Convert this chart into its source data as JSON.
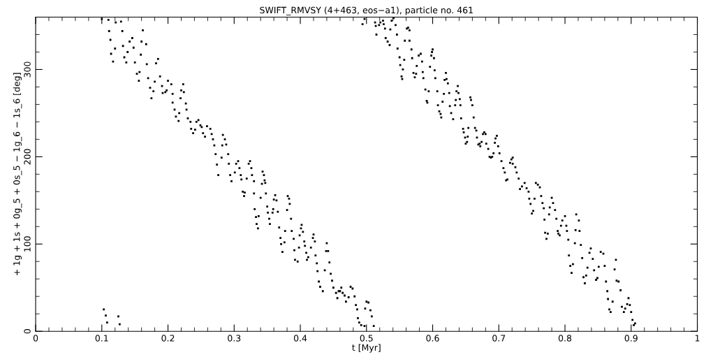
{
  "chart_data": {
    "type": "scatter",
    "title": "SWIFT_RMVSY (4+463, eos−a1), particle no. 461",
    "xlabel": "t [Myr]",
    "ylabel": "+ 1g + 1s + 0g_5 + 0s_5 − 1g_6 − 1s_6 [deg]",
    "xlim": [
      0,
      1
    ],
    "ylim": [
      0,
      360
    ],
    "xticks": [
      0,
      0.1,
      0.2,
      0.3,
      0.4,
      0.5,
      0.6,
      0.7,
      0.8,
      0.9,
      1
    ],
    "yticks": [
      0,
      100,
      200,
      300
    ],
    "grid": false,
    "legend": false,
    "marker": "square",
    "series": [
      {
        "color": "#000000",
        "x": [
          0.103,
          0.106,
          0.108,
          0.125,
          0.127
        ],
        "values": [
          25,
          18,
          10,
          17,
          8
        ]
      },
      {
        "color": "#000000",
        "x": [
          0.1,
          0.11,
          0.111,
          0.113,
          0.114,
          0.117,
          0.12,
          0.121,
          0.129,
          0.131,
          0.132,
          0.134,
          0.137,
          0.139,
          0.142,
          0.146,
          0.148,
          0.15,
          0.153,
          0.156,
          0.157,
          0.159,
          0.16,
          0.162,
          0.167,
          0.168,
          0.17,
          0.173,
          0.175,
          0.178,
          0.18,
          0.182,
          0.185,
          0.188,
          0.191,
          0.192,
          0.196,
          0.198,
          0.2,
          0.205,
          0.207,
          0.207,
          0.21,
          0.212,
          0.216,
          0.217,
          0.219,
          0.22,
          0.223,
          0.224,
          0.227,
          0.228,
          0.23,
          0.234,
          0.235,
          0.238,
          0.241,
          0.243,
          0.246,
          0.249,
          0.251,
          0.253,
          0.256,
          0.259,
          0.264,
          0.266,
          0.268,
          0.27,
          0.272,
          0.274,
          0.276,
          0.281,
          0.282,
          0.283,
          0.286,
          0.288,
          0.291,
          0.292,
          0.294,
          0.296,
          0.301,
          0.303,
          0.306,
          0.308,
          0.31,
          0.311,
          0.313,
          0.315,
          0.316,
          0.319,
          0.322,
          0.324,
          0.326,
          0.327,
          0.33,
          0.33,
          0.331,
          0.333,
          0.334,
          0.336,
          0.337,
          0.34,
          0.342,
          0.343,
          0.345,
          0.346,
          0.347,
          0.348,
          0.35,
          0.351,
          0.353,
          0.354,
          0.358,
          0.359,
          0.36,
          0.362,
          0.364,
          0.366,
          0.368,
          0.37,
          0.371,
          0.373,
          0.376,
          0.377,
          0.38,
          0.381,
          0.383,
          0.384,
          0.386,
          0.387,
          0.39,
          0.391,
          0.392,
          0.396,
          0.398,
          0.399,
          0.401,
          0.402,
          0.404,
          0.406,
          0.407,
          0.409,
          0.41,
          0.412,
          0.416,
          0.419,
          0.42,
          0.422,
          0.423,
          0.425,
          0.426,
          0.428,
          0.43,
          0.434,
          0.437,
          0.439,
          0.44,
          0.442,
          0.444,
          0.446,
          0.448,
          0.45,
          0.454,
          0.456,
          0.458,
          0.46,
          0.462,
          0.464,
          0.467,
          0.469,
          0.473,
          0.476,
          0.479,
          0.482,
          0.484,
          0.486,
          0.487,
          0.489,
          0.492,
          0.497,
          0.498,
          0.5,
          0.503,
          0.506,
          0.508,
          0.511
        ],
        "values": [
          358,
          357,
          344,
          334,
          318,
          309,
          324,
          354,
          355,
          344,
          327,
          314,
          308,
          320,
          332,
          336,
          325,
          308,
          295,
          287,
          297,
          317,
          332,
          345,
          329,
          306,
          290,
          279,
          267,
          275,
          286,
          307,
          312,
          292,
          281,
          273,
          274,
          276,
          287,
          283,
          272,
          262,
          254,
          246,
          241,
          250,
          267,
          276,
          283,
          274,
          261,
          254,
          244,
          240,
          232,
          227,
          231,
          240,
          242,
          236,
          234,
          227,
          223,
          235,
          232,
          226,
          220,
          213,
          203,
          191,
          179,
          199,
          213,
          225,
          220,
          214,
          203,
          192,
          179,
          172,
          182,
          192,
          195,
          187,
          179,
          174,
          160,
          155,
          159,
          175,
          192,
          195,
          187,
          179,
          172,
          158,
          140,
          131,
          123,
          118,
          132,
          153,
          169,
          183,
          179,
          173,
          170,
          158,
          143,
          136,
          129,
          123,
          136,
          140,
          151,
          156,
          150,
          137,
          119,
          107,
          100,
          91,
          102,
          115,
          139,
          155,
          152,
          146,
          129,
          115,
          106,
          93,
          82,
          80,
          96,
          110,
          118,
          122,
          114,
          103,
          98,
          90,
          82,
          85,
          96,
          107,
          111,
          103,
          87,
          78,
          69,
          57,
          51,
          46,
          70,
          92,
          101,
          92,
          79,
          66,
          58,
          50,
          44,
          38,
          46,
          46,
          50,
          44,
          41,
          34,
          39,
          51,
          49,
          40,
          30,
          25,
          15,
          10,
          7,
          6,
          26,
          34,
          33,
          24,
          17,
          6
        ]
      },
      {
        "color": "#000000",
        "x": [
          0.494,
          0.497,
          0.513,
          0.514,
          0.515,
          0.519,
          0.521,
          0.525,
          0.526,
          0.528,
          0.529,
          0.532,
          0.535,
          0.536,
          0.538,
          0.541,
          0.544,
          0.546,
          0.547,
          0.55,
          0.551,
          0.553,
          0.554,
          0.555,
          0.557,
          0.558,
          0.561,
          0.563,
          0.565,
          0.565,
          0.568,
          0.569,
          0.571,
          0.573,
          0.575,
          0.576,
          0.579,
          0.582,
          0.584,
          0.585,
          0.586,
          0.589,
          0.591,
          0.592,
          0.594,
          0.596,
          0.598,
          0.599,
          0.6,
          0.602,
          0.603,
          0.604,
          0.607,
          0.608,
          0.61,
          0.612,
          0.613,
          0.615,
          0.617,
          0.618,
          0.62,
          0.621,
          0.623,
          0.625,
          0.626,
          0.628,
          0.631,
          0.634,
          0.635,
          0.636,
          0.638,
          0.639,
          0.641,
          0.642,
          0.643,
          0.646,
          0.647,
          0.649,
          0.65,
          0.652,
          0.653,
          0.654,
          0.657,
          0.658,
          0.66,
          0.662,
          0.664,
          0.666,
          0.667,
          0.669,
          0.671,
          0.672,
          0.674,
          0.676,
          0.678,
          0.68,
          0.681,
          0.684,
          0.686,
          0.688,
          0.69,
          0.692,
          0.694,
          0.695,
          0.697,
          0.699,
          0.701,
          0.704,
          0.707,
          0.709,
          0.711,
          0.713,
          0.717,
          0.719,
          0.721,
          0.721,
          0.725,
          0.727,
          0.73,
          0.732,
          0.735,
          0.739,
          0.742,
          0.745,
          0.746,
          0.748,
          0.75,
          0.752,
          0.754,
          0.756,
          0.759,
          0.762,
          0.764,
          0.766,
          0.768,
          0.769,
          0.77,
          0.772,
          0.774,
          0.776,
          0.777,
          0.78,
          0.782,
          0.785,
          0.787,
          0.789,
          0.79,
          0.792,
          0.794,
          0.796,
          0.8,
          0.802,
          0.803,
          0.805,
          0.806,
          0.808,
          0.81,
          0.812,
          0.815,
          0.816,
          0.817,
          0.821,
          0.822,
          0.824,
          0.826,
          0.828,
          0.83,
          0.832,
          0.834,
          0.837,
          0.839,
          0.842,
          0.844,
          0.847,
          0.849,
          0.851,
          0.854,
          0.858,
          0.86,
          0.862,
          0.864,
          0.865,
          0.867,
          0.869,
          0.872,
          0.875,
          0.877,
          0.878,
          0.881,
          0.884,
          0.886,
          0.889,
          0.891,
          0.894,
          0.896,
          0.898,
          0.9,
          0.902,
          0.904,
          0.906
        ],
        "values": [
          352,
          358,
          354,
          350,
          340,
          351,
          354,
          356,
          352,
          347,
          336,
          332,
          328,
          346,
          356,
          359,
          351,
          340,
          324,
          314,
          305,
          292,
          289,
          300,
          311,
          333,
          347,
          348,
          345,
          333,
          323,
          313,
          296,
          291,
          295,
          304,
          316,
          318,
          309,
          297,
          290,
          277,
          264,
          262,
          275,
          303,
          316,
          320,
          323,
          313,
          299,
          290,
          275,
          259,
          252,
          249,
          245,
          263,
          272,
          288,
          296,
          289,
          284,
          273,
          258,
          250,
          243,
          259,
          265,
          275,
          281,
          273,
          266,
          259,
          244,
          232,
          228,
          222,
          215,
          217,
          223,
          233,
          268,
          265,
          259,
          245,
          233,
          230,
          222,
          214,
          215,
          212,
          217,
          226,
          228,
          226,
          215,
          209,
          200,
          199,
          200,
          204,
          216,
          221,
          224,
          212,
          204,
          195,
          187,
          182,
          173,
          174,
          193,
          197,
          199,
          192,
          188,
          182,
          175,
          163,
          166,
          170,
          164,
          160,
          152,
          146,
          135,
          138,
          152,
          170,
          168,
          165,
          155,
          147,
          141,
          128,
          113,
          106,
          112,
          134,
          142,
          153,
          147,
          139,
          129,
          115,
          112,
          110,
          121,
          127,
          132,
          121,
          115,
          105,
          87,
          75,
          67,
          77,
          101,
          116,
          134,
          127,
          115,
          99,
          84,
          62,
          55,
          64,
          73,
          90,
          95,
          83,
          70,
          59,
          61,
          74,
          91,
          89,
          75,
          57,
          46,
          37,
          25,
          22,
          34,
          71,
          82,
          58,
          57,
          47,
          28,
          22,
          26,
          31,
          38,
          30,
          22,
          13,
          7,
          9
        ]
      }
    ]
  }
}
